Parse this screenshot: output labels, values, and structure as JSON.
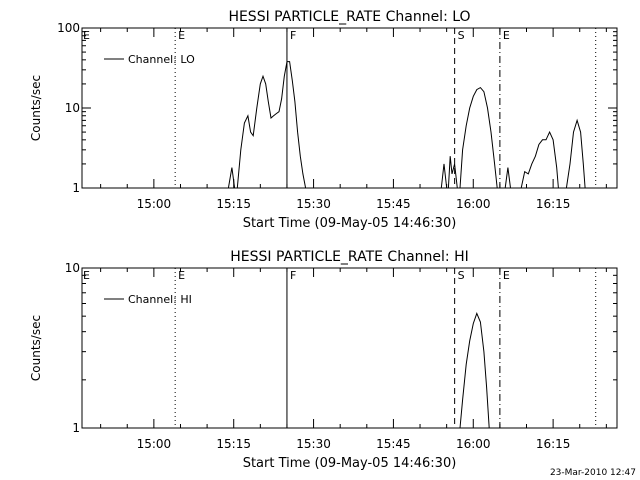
{
  "chart_data": [
    {
      "type": "line",
      "title": "HESSI PARTICLE_RATE Channel: LO",
      "xlabel": "Start Time (09-May-05 14:46:30)",
      "ylabel": "Counts/sec",
      "yscale": "log",
      "ylim": [
        1,
        100
      ],
      "xlim": [
        "14:46:30",
        "16:27:00"
      ],
      "xticks": [
        "15:00",
        "15:15",
        "15:30",
        "15:45",
        "16:00",
        "16:15"
      ],
      "yticks": [
        "1",
        "10",
        "100"
      ],
      "grid": false,
      "legend": {
        "position": "top-left",
        "label": "Channel: LO"
      },
      "markers": [
        {
          "time": "15:04:00",
          "style": "dotted",
          "label": "E"
        },
        {
          "time": "15:25:00",
          "style": "solid",
          "label": "F"
        },
        {
          "time": "15:56:30",
          "style": "dashed",
          "label": "S"
        },
        {
          "time": "16:05:00",
          "style": "dashdot",
          "label": "E"
        },
        {
          "time": "16:23:00",
          "style": "dotted",
          "label": ""
        }
      ],
      "series": [
        {
          "name": "Channel: LO",
          "segments": [
            [
              [
                "15:14:00",
                1
              ],
              [
                "15:14:40",
                1.8
              ],
              [
                "15:15:10",
                1
              ]
            ],
            [
              [
                "15:15:40",
                1
              ],
              [
                "15:16:20",
                3
              ],
              [
                "15:17:00",
                6.5
              ],
              [
                "15:17:40",
                8
              ],
              [
                "15:18:10",
                5
              ],
              [
                "15:18:40",
                4.5
              ],
              [
                "15:19:20",
                10
              ],
              [
                "15:20:00",
                20
              ],
              [
                "15:20:30",
                25
              ],
              [
                "15:21:00",
                20
              ],
              [
                "15:21:30",
                12
              ],
              [
                "15:22:00",
                7.5
              ],
              [
                "15:22:30",
                8
              ],
              [
                "15:23:00",
                8.5
              ],
              [
                "15:23:30",
                9
              ],
              [
                "15:24:00",
                13
              ],
              [
                "15:24:30",
                25
              ],
              [
                "15:25:00",
                38
              ],
              [
                "15:25:30",
                38
              ],
              [
                "15:26:00",
                22
              ],
              [
                "15:26:30",
                12
              ],
              [
                "15:27:00",
                5
              ],
              [
                "15:27:30",
                2.5
              ],
              [
                "15:28:00",
                1.5
              ],
              [
                "15:28:30",
                1
              ]
            ],
            [
              [
                "15:54:00",
                1
              ],
              [
                "15:54:30",
                2
              ],
              [
                "15:55:00",
                1
              ]
            ],
            [
              [
                "15:55:20",
                1
              ],
              [
                "15:55:40",
                2.5
              ],
              [
                "15:56:00",
                1.5
              ],
              [
                "15:56:30",
                2
              ],
              [
                "15:57:00",
                1
              ]
            ],
            [
              [
                "15:57:30",
                1
              ],
              [
                "15:58:00",
                3
              ],
              [
                "15:58:40",
                6
              ],
              [
                "15:59:20",
                10
              ],
              [
                "16:00:00",
                14
              ],
              [
                "16:00:40",
                17
              ],
              [
                "16:01:20",
                18
              ],
              [
                "16:02:00",
                16
              ],
              [
                "16:02:40",
                10
              ],
              [
                "16:03:20",
                5
              ],
              [
                "16:04:00",
                2
              ],
              [
                "16:04:30",
                1
              ]
            ],
            [
              [
                "16:06:00",
                1
              ],
              [
                "16:06:30",
                1.8
              ],
              [
                "16:07:00",
                1
              ]
            ],
            [
              [
                "16:09:00",
                1
              ],
              [
                "16:09:40",
                1.6
              ],
              [
                "16:10:20",
                1.5
              ],
              [
                "16:11:00",
                2
              ],
              [
                "16:11:40",
                2.5
              ],
              [
                "16:12:20",
                3.5
              ],
              [
                "16:13:00",
                4
              ],
              [
                "16:13:40",
                4
              ],
              [
                "16:14:20",
                5
              ],
              [
                "16:15:00",
                4
              ],
              [
                "16:15:40",
                1.8
              ],
              [
                "16:16:00",
                1
              ]
            ],
            [
              [
                "16:17:30",
                1
              ],
              [
                "16:18:10",
                2
              ],
              [
                "16:18:50",
                5
              ],
              [
                "16:19:30",
                7
              ],
              [
                "16:20:10",
                5
              ],
              [
                "16:20:40",
                2
              ],
              [
                "16:21:00",
                1
              ]
            ]
          ]
        }
      ]
    },
    {
      "type": "line",
      "title": "HESSI PARTICLE_RATE Channel: HI",
      "xlabel": "Start Time (09-May-05 14:46:30)",
      "ylabel": "Counts/sec",
      "yscale": "log",
      "ylim": [
        1,
        10
      ],
      "xlim": [
        "14:46:30",
        "16:27:00"
      ],
      "xticks": [
        "15:00",
        "15:15",
        "15:30",
        "15:45",
        "16:00",
        "16:15"
      ],
      "yticks": [
        "1",
        "10"
      ],
      "grid": false,
      "legend": {
        "position": "top-left",
        "label": "Channel: HI"
      },
      "markers": [
        {
          "time": "15:04:00",
          "style": "dotted",
          "label": "E"
        },
        {
          "time": "15:25:00",
          "style": "solid",
          "label": "F"
        },
        {
          "time": "15:56:30",
          "style": "dashed",
          "label": "S"
        },
        {
          "time": "16:05:00",
          "style": "dashdot",
          "label": "E"
        },
        {
          "time": "16:23:00",
          "style": "dotted",
          "label": ""
        }
      ],
      "series": [
        {
          "name": "Channel: HI",
          "segments": [
            [
              [
                "15:57:30",
                1
              ],
              [
                "15:58:00",
                1.5
              ],
              [
                "15:58:40",
                2.5
              ],
              [
                "15:59:20",
                3.5
              ],
              [
                "16:00:00",
                4.5
              ],
              [
                "16:00:40",
                5.2
              ],
              [
                "16:01:20",
                4.6
              ],
              [
                "16:02:00",
                3
              ],
              [
                "16:02:30",
                1.8
              ],
              [
                "16:03:00",
                1
              ]
            ]
          ]
        }
      ]
    }
  ],
  "footer": {
    "timestamp": "23-Mar-2010 12:47"
  }
}
